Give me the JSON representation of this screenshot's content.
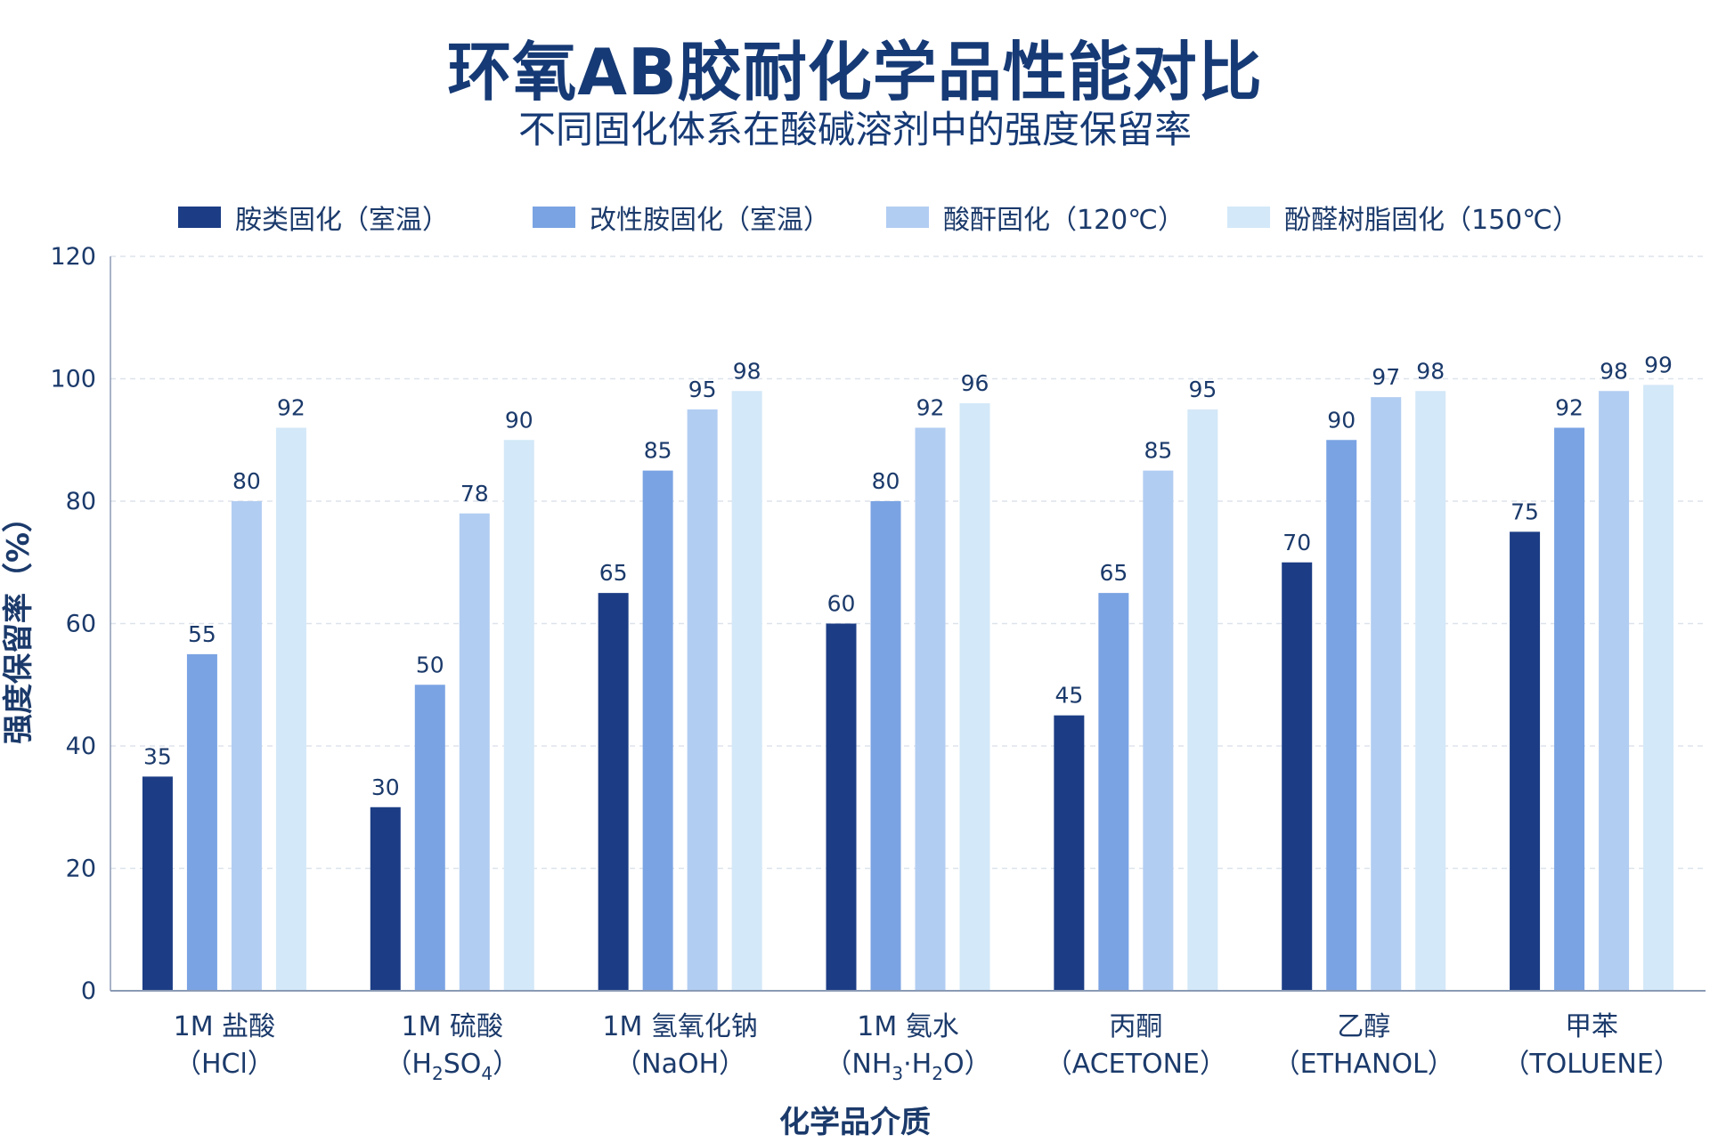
{
  "chart_data": {
    "type": "bar",
    "title": "环氧AB胶耐化学品性能对比",
    "subtitle": "不同固化体系在酸碱溶剂中的强度保留率",
    "xlabel": "化学品介质",
    "ylabel": "强度保留率（%）",
    "ylim": [
      0,
      120
    ],
    "yticks": [
      0,
      20,
      40,
      60,
      80,
      100,
      120
    ],
    "grid": true,
    "legend_position": "top",
    "categories": [
      {
        "line1": "1M 盐酸",
        "line2_pre": "（HCl）",
        "line2_sub1": "",
        "line2_mid": "",
        "line2_sub2": "",
        "line2_post": ""
      },
      {
        "line1": "1M 硫酸",
        "line2_pre": "（H",
        "line2_sub1": "2",
        "line2_mid": "SO",
        "line2_sub2": "4",
        "line2_post": "）"
      },
      {
        "line1": "1M 氢氧化钠",
        "line2_pre": "（NaOH）",
        "line2_sub1": "",
        "line2_mid": "",
        "line2_sub2": "",
        "line2_post": ""
      },
      {
        "line1": "1M 氨水",
        "line2_pre": "（NH",
        "line2_sub1": "3",
        "line2_mid": "·H",
        "line2_sub2": "2",
        "line2_post": "O）"
      },
      {
        "line1": "丙酮",
        "line2_pre": "（ACETONE）",
        "line2_sub1": "",
        "line2_mid": "",
        "line2_sub2": "",
        "line2_post": ""
      },
      {
        "line1": "乙醇",
        "line2_pre": "（ETHANOL）",
        "line2_sub1": "",
        "line2_mid": "",
        "line2_sub2": "",
        "line2_post": ""
      },
      {
        "line1": "甲苯",
        "line2_pre": "（TOLUENE）",
        "line2_sub1": "",
        "line2_mid": "",
        "line2_sub2": "",
        "line2_post": ""
      }
    ],
    "series": [
      {
        "name": "胺类固化（室温）",
        "color": "#1c3d85",
        "values": [
          35,
          30,
          65,
          60,
          45,
          70,
          75
        ]
      },
      {
        "name": "改性胺固化（室温）",
        "color": "#7aa3e3",
        "values": [
          55,
          50,
          85,
          80,
          65,
          90,
          92
        ]
      },
      {
        "name": "酸酐固化（120℃）",
        "color": "#b2cdf2",
        "values": [
          80,
          78,
          95,
          92,
          85,
          97,
          98
        ]
      },
      {
        "name": "酚醛树脂固化（150℃）",
        "color": "#d3e8f8",
        "values": [
          92,
          90,
          98,
          96,
          95,
          98,
          99
        ]
      }
    ]
  }
}
